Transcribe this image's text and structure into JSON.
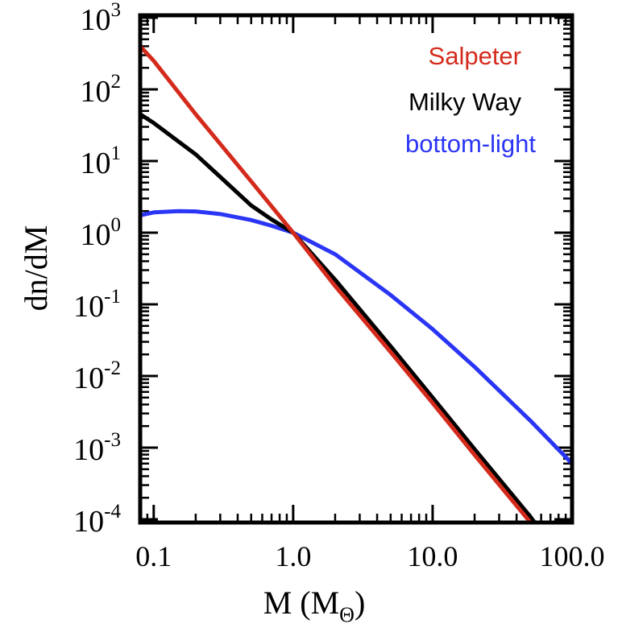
{
  "chart_data": {
    "type": "line",
    "xlabel": "M (M",
    "xlabel_sub": "Θ",
    "xlabel_close": ")",
    "ylabel": "dn/dM",
    "xscale": "log",
    "yscale": "log",
    "xlim": [
      0.08,
      100
    ],
    "ylim": [
      6e-05,
      1000
    ],
    "x_ticks": [
      {
        "value": 0.1,
        "label": "0.1"
      },
      {
        "value": 1,
        "label": "1.0"
      },
      {
        "value": 10,
        "label": "10.0"
      },
      {
        "value": 100,
        "label": "100.0"
      }
    ],
    "y_ticks": [
      {
        "value": 1000,
        "base": "10",
        "exp": "3"
      },
      {
        "value": 100,
        "base": "10",
        "exp": "2"
      },
      {
        "value": 10,
        "base": "10",
        "exp": "1"
      },
      {
        "value": 1,
        "base": "10",
        "exp": "0"
      },
      {
        "value": 0.1,
        "base": "10",
        "exp": "-1"
      },
      {
        "value": 0.01,
        "base": "10",
        "exp": "-2"
      },
      {
        "value": 0.001,
        "base": "10",
        "exp": "-3"
      },
      {
        "value": 0.0001,
        "base": "10",
        "exp": "-4"
      }
    ],
    "legend_position": "top-right",
    "series": [
      {
        "name": "Salpeter",
        "color": "#d42a1c",
        "x": [
          0.08,
          0.1,
          0.2,
          0.5,
          1,
          2,
          5,
          10,
          20,
          50,
          55
        ],
        "y": [
          400,
          250,
          45,
          5.2,
          1.0,
          0.18,
          0.0216,
          0.0042,
          0.00079,
          9.16e-05,
          7.45e-05
        ]
      },
      {
        "name": "Milky Way",
        "color": "#000000",
        "x": [
          0.08,
          0.1,
          0.2,
          0.3,
          0.5,
          0.7,
          1,
          2,
          5,
          10,
          20,
          50,
          58
        ],
        "y": [
          45,
          34,
          12.4,
          6.0,
          2.4,
          1.53,
          1.0,
          0.22,
          0.026,
          0.005,
          0.00095,
          0.00011,
          7.45e-05
        ]
      },
      {
        "name": "bottom-light",
        "color": "#2a35f5",
        "x": [
          0.08,
          0.1,
          0.15,
          0.2,
          0.3,
          0.5,
          0.7,
          1,
          2,
          5,
          10,
          20,
          50,
          100
        ],
        "y": [
          1.75,
          1.92,
          2.0,
          1.98,
          1.82,
          1.5,
          1.25,
          1.0,
          0.5,
          0.135,
          0.045,
          0.0134,
          0.0024,
          0.0006
        ]
      }
    ]
  }
}
